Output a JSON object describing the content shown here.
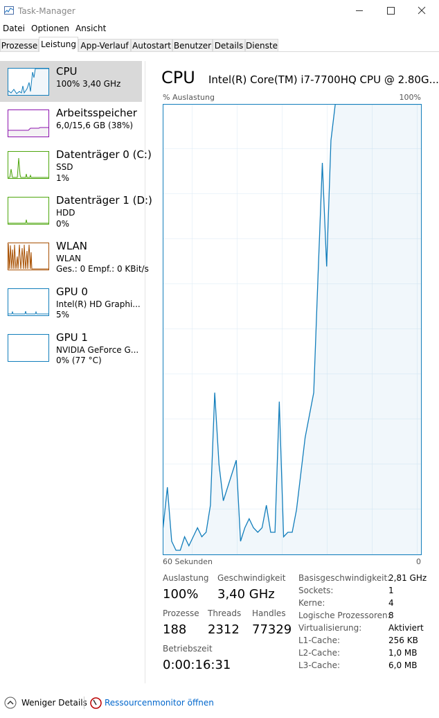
{
  "window": {
    "title": "Task-Manager"
  },
  "menu": [
    "Datei",
    "Optionen",
    "Ansicht"
  ],
  "tabs": [
    "Prozesse",
    "Leistung",
    "App-Verlauf",
    "Autostart",
    "Benutzer",
    "Details",
    "Dienste"
  ],
  "sidebar": [
    {
      "name": "CPU",
      "lines": [
        "100% 3,40 GHz"
      ]
    },
    {
      "name": "Arbeitsspeicher",
      "lines": [
        "6,0/15,6 GB (38%)"
      ]
    },
    {
      "name": "Datenträger 0 (C:)",
      "lines": [
        "SSD",
        "1%"
      ]
    },
    {
      "name": "Datenträger 1 (D:)",
      "lines": [
        "HDD",
        "0%"
      ]
    },
    {
      "name": "WLAN",
      "lines": [
        "WLAN",
        "Ges.: 0 Empf.: 0 KBit/s"
      ]
    },
    {
      "name": "GPU 0",
      "lines": [
        "Intel(R) HD Graphi...",
        "5%"
      ]
    },
    {
      "name": "GPU 1",
      "lines": [
        "NVIDIA GeForce G...",
        "0% (77 °C)"
      ]
    }
  ],
  "header": {
    "title": "CPU",
    "model": "Intel(R) Core(TM) i7-7700HQ CPU @ 2.80G..."
  },
  "chart_data": {
    "type": "area",
    "y_label": "% Auslastung",
    "y_max_label": "100%",
    "x_start_label": "60 Sekunden",
    "x_end_label": "0",
    "ylim": [
      0,
      100
    ],
    "color": "#117dbb",
    "values": [
      6,
      15,
      3,
      1,
      1,
      4,
      2,
      4,
      6,
      4,
      5,
      11,
      36,
      20,
      12,
      15,
      18,
      21,
      3,
      6,
      8,
      6,
      5,
      6,
      11,
      5,
      5,
      34,
      4,
      5,
      5,
      10,
      18,
      26,
      31,
      36,
      62,
      87,
      64,
      92,
      100,
      100,
      100,
      100,
      100,
      100,
      100,
      100,
      100,
      100,
      100,
      100,
      100,
      100,
      100,
      100,
      100,
      100,
      100,
      100,
      100
    ]
  },
  "stats": [
    {
      "label": "Auslastung",
      "value": "100%"
    },
    {
      "label": "Geschwindigkeit",
      "value": "3,40 GHz"
    },
    {
      "label": "Prozesse",
      "value": "188"
    },
    {
      "label": "Threads",
      "value": "2312"
    },
    {
      "label": "Handles",
      "value": "77329"
    },
    {
      "label": "Betriebszeit",
      "value": "0:00:16:31"
    }
  ],
  "properties": [
    [
      "Basisgeschwindigkeit:",
      "2,81 GHz"
    ],
    [
      "Sockets:",
      "1"
    ],
    [
      "Kerne:",
      "4"
    ],
    [
      "Logische Prozessoren:",
      "8"
    ],
    [
      "Virtualisierung:",
      "Aktiviert"
    ],
    [
      "L1-Cache:",
      "256 KB"
    ],
    [
      "L2-Cache:",
      "1,0 MB"
    ],
    [
      "L3-Cache:",
      "6,0 MB"
    ]
  ],
  "footer": {
    "less": "Weniger Details",
    "monitor": "Ressourcenmonitor öffnen"
  }
}
